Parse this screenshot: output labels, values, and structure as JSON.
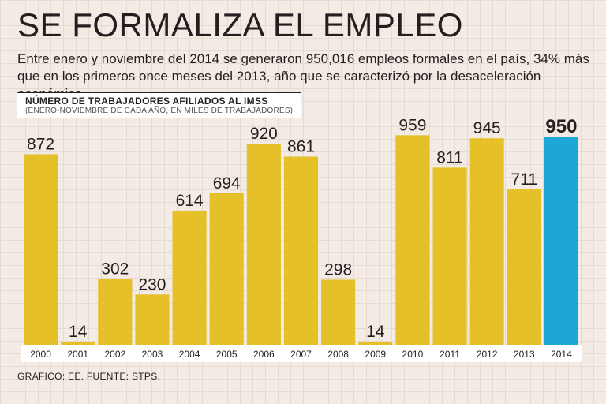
{
  "header": {
    "title": "SE FORMALIZA EL EMPLEO",
    "subtitle": "Entre enero y noviembre del 2014 se generaron 950,016 empleos formales en el país, 34% más que en los primeros once meses del 2013, año que se caracterizó por la desaceleración económica."
  },
  "chart_label": {
    "title": "NÚMERO DE TRABAJADORES AFILIADOS AL IMSS",
    "subtitle": "(ENERO-NOVIEMBRE DE CADA AÑO, EN MILES DE TRABAJADORES)"
  },
  "footer": {
    "source": "GRÁFICO: EE. FUENTE: STPS."
  },
  "colors": {
    "bar": "#e5c028",
    "highlight": "#1ea7d6",
    "axis_label_bg": "#ffffff"
  },
  "chart_data": {
    "type": "bar",
    "title": "NÚMERO DE TRABAJADORES AFILIADOS AL IMSS",
    "subtitle": "(ENERO-NOVIEMBRE DE CADA AÑO, EN MILES DE TRABAJADORES)",
    "xlabel": "",
    "ylabel": "",
    "categories": [
      "2000",
      "2001",
      "2002",
      "2003",
      "2004",
      "2005",
      "2006",
      "2007",
      "2008",
      "2009",
      "2010",
      "2011",
      "2012",
      "2013",
      "2014"
    ],
    "values": [
      872,
      14,
      302,
      230,
      614,
      694,
      920,
      861,
      298,
      14,
      959,
      811,
      945,
      711,
      950
    ],
    "labels": [
      "872",
      "14",
      "302",
      "230",
      "614",
      "694",
      "920",
      "861",
      "298",
      "14",
      "959",
      "811",
      "945",
      "711",
      "950"
    ],
    "highlight_index": 14,
    "ylim": [
      0,
      1000
    ],
    "grid": false
  }
}
